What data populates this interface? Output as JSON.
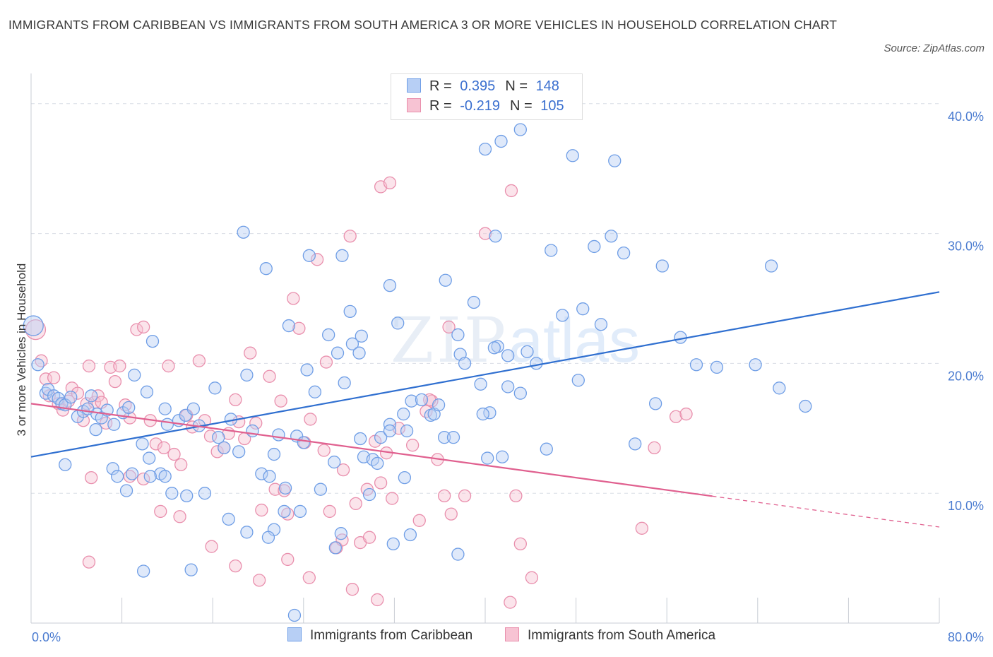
{
  "title": "IMMIGRANTS FROM CARIBBEAN VS IMMIGRANTS FROM SOUTH AMERICA 3 OR MORE VEHICLES IN HOUSEHOLD CORRELATION CHART",
  "source": "Source: ZipAtlas.com",
  "watermark": {
    "zip": "ZIP",
    "atlas": "atlas"
  },
  "legend": {
    "r_label": "R =",
    "n_label": "N =",
    "series": [
      {
        "name": "Immigrants from Caribbean",
        "r": "0.395",
        "n": "148"
      },
      {
        "name": "Immigrants from South America",
        "r": "-0.219",
        "n": "105"
      }
    ]
  },
  "colors": {
    "blue_fill": "#b7cff5",
    "blue_stroke": "#6f9ee6",
    "blue_line": "#2f6fd0",
    "pink_fill": "#f7c3d3",
    "pink_stroke": "#e98fad",
    "pink_line": "#e0608f",
    "grid": "#d9dde5",
    "axis_text": "#4a7bd0"
  },
  "chart_data": {
    "type": "scatter",
    "title": "IMMIGRANTS FROM CARIBBEAN VS IMMIGRANTS FROM SOUTH AMERICA 3 OR MORE VEHICLES IN HOUSEHOLD CORRELATION CHART",
    "xlabel": "",
    "ylabel": "3 or more Vehicles in Household",
    "xlim": [
      0,
      80
    ],
    "ylim": [
      0,
      42
    ],
    "x_ticks": [
      "0.0%",
      "80.0%"
    ],
    "y_ticks": [
      {
        "value": 10,
        "label": "10.0%"
      },
      {
        "value": 20,
        "label": "20.0%"
      },
      {
        "value": 30,
        "label": "30.0%"
      },
      {
        "value": 40,
        "label": "40.0%"
      }
    ],
    "grid": "horizontal dashed",
    "legend_position": "top-center",
    "series": [
      {
        "name": "Immigrants from Caribbean",
        "color": "#6f9ee6",
        "trend": {
          "x": [
            0,
            80
          ],
          "y": [
            12.8,
            25.5
          ],
          "dashed_from": null
        },
        "points": [
          [
            0.2,
            22.9
          ],
          [
            0.6,
            19.9
          ],
          [
            1.3,
            17.7
          ],
          [
            1.5,
            18.0
          ],
          [
            2.0,
            17.5
          ],
          [
            2.4,
            17.3
          ],
          [
            2.7,
            16.9
          ],
          [
            3.0,
            16.8
          ],
          [
            3.5,
            17.4
          ],
          [
            4.1,
            15.9
          ],
          [
            4.6,
            16.3
          ],
          [
            5.0,
            16.5
          ],
          [
            5.3,
            17.5
          ],
          [
            5.8,
            16.1
          ],
          [
            6.2,
            15.8
          ],
          [
            5.7,
            14.9
          ],
          [
            6.7,
            16.4
          ],
          [
            7.3,
            15.3
          ],
          [
            8.1,
            16.2
          ],
          [
            8.6,
            16.6
          ],
          [
            9.1,
            19.1
          ],
          [
            10.2,
            17.8
          ],
          [
            10.7,
            21.7
          ],
          [
            11.4,
            11.5
          ],
          [
            9.8,
            13.8
          ],
          [
            10.4,
            12.7
          ],
          [
            11.8,
            16.5
          ],
          [
            12.0,
            15.3
          ],
          [
            13.0,
            15.6
          ],
          [
            13.6,
            16.0
          ],
          [
            14.3,
            16.5
          ],
          [
            14.8,
            15.2
          ],
          [
            15.3,
            10.0
          ],
          [
            16.2,
            18.1
          ],
          [
            16.5,
            14.3
          ],
          [
            17.0,
            13.5
          ],
          [
            17.6,
            15.7
          ],
          [
            18.3,
            13.2
          ],
          [
            19.0,
            19.1
          ],
          [
            19.5,
            14.8
          ],
          [
            20.3,
            11.5
          ],
          [
            21.0,
            11.3
          ],
          [
            21.4,
            13.0
          ],
          [
            21.8,
            14.5
          ],
          [
            22.4,
            10.4
          ],
          [
            22.7,
            22.9
          ],
          [
            23.4,
            14.4
          ],
          [
            23.7,
            8.6
          ],
          [
            24.0,
            13.9
          ],
          [
            24.3,
            19.5
          ],
          [
            25.0,
            17.8
          ],
          [
            25.5,
            10.3
          ],
          [
            24.5,
            28.3
          ],
          [
            26.2,
            22.2
          ],
          [
            27.0,
            20.8
          ],
          [
            27.6,
            18.5
          ],
          [
            28.1,
            24.0
          ],
          [
            28.3,
            21.5
          ],
          [
            28.9,
            20.8
          ],
          [
            29.1,
            22.1
          ],
          [
            29.3,
            12.8
          ],
          [
            30.1,
            12.6
          ],
          [
            30.8,
            14.3
          ],
          [
            31.6,
            15.3
          ],
          [
            32.3,
            23.1
          ],
          [
            32.8,
            16.1
          ],
          [
            33.1,
            14.8
          ],
          [
            33.5,
            17.1
          ],
          [
            34.4,
            17.2
          ],
          [
            35.2,
            16.0
          ],
          [
            35.5,
            16.1
          ],
          [
            35.9,
            16.8
          ],
          [
            36.4,
            14.3
          ],
          [
            37.2,
            14.3
          ],
          [
            37.6,
            22.2
          ],
          [
            37.8,
            20.7
          ],
          [
            38.2,
            20.0
          ],
          [
            39.6,
            18.4
          ],
          [
            40.4,
            16.2
          ],
          [
            41.1,
            21.3
          ],
          [
            41.5,
            12.8
          ],
          [
            42.0,
            18.2
          ],
          [
            43.1,
            17.7
          ],
          [
            43.7,
            20.9
          ],
          [
            44.5,
            20.0
          ],
          [
            45.4,
            13.4
          ],
          [
            45.8,
            28.7
          ],
          [
            46.8,
            23.7
          ],
          [
            48.2,
            18.7
          ],
          [
            48.6,
            24.2
          ],
          [
            49.6,
            29.0
          ],
          [
            50.2,
            23.0
          ],
          [
            51.1,
            29.8
          ],
          [
            52.2,
            28.5
          ],
          [
            53.2,
            13.8
          ],
          [
            55.0,
            16.9
          ],
          [
            55.6,
            27.5
          ],
          [
            57.2,
            22.0
          ],
          [
            58.6,
            19.9
          ],
          [
            60.4,
            19.7
          ],
          [
            65.2,
            27.5
          ],
          [
            65.9,
            18.1
          ],
          [
            68.2,
            16.7
          ],
          [
            63.8,
            19.9
          ],
          [
            20.7,
            27.3
          ],
          [
            18.7,
            30.1
          ],
          [
            27.4,
            28.3
          ],
          [
            31.6,
            26.0
          ],
          [
            36.5,
            26.4
          ],
          [
            40.0,
            36.5
          ],
          [
            41.4,
            37.1
          ],
          [
            43.1,
            38.0
          ],
          [
            47.7,
            36.0
          ],
          [
            51.4,
            35.6
          ],
          [
            40.9,
            29.8
          ],
          [
            39.0,
            24.7
          ],
          [
            40.8,
            21.2
          ],
          [
            42.0,
            20.6
          ],
          [
            39.8,
            16.1
          ],
          [
            40.2,
            12.7
          ],
          [
            31.6,
            14.8
          ],
          [
            30.5,
            12.3
          ],
          [
            29.0,
            14.2
          ],
          [
            26.7,
            12.4
          ],
          [
            27.3,
            6.9
          ],
          [
            26.8,
            5.8
          ],
          [
            31.9,
            6.1
          ],
          [
            33.4,
            6.8
          ],
          [
            37.6,
            5.3
          ],
          [
            32.9,
            11.2
          ],
          [
            29.8,
            9.9
          ],
          [
            22.3,
            8.6
          ],
          [
            21.4,
            7.2
          ],
          [
            20.9,
            6.6
          ],
          [
            19.0,
            7.0
          ],
          [
            17.4,
            8.0
          ],
          [
            13.7,
            9.8
          ],
          [
            12.4,
            10.0
          ],
          [
            11.8,
            11.3
          ],
          [
            10.5,
            11.3
          ],
          [
            8.9,
            11.5
          ],
          [
            8.4,
            10.2
          ],
          [
            7.2,
            11.9
          ],
          [
            7.6,
            11.3
          ],
          [
            3.0,
            12.2
          ],
          [
            9.9,
            4.0
          ],
          [
            14.1,
            4.1
          ],
          [
            23.2,
            0.6
          ]
        ]
      },
      {
        "name": "Immigrants from South America",
        "color": "#e98fad",
        "trend": {
          "x": [
            0,
            80
          ],
          "y": [
            16.9,
            7.4
          ],
          "dashed_from": 60
        },
        "points": [
          [
            0.4,
            22.6
          ],
          [
            0.9,
            20.2
          ],
          [
            1.3,
            18.8
          ],
          [
            1.6,
            17.5
          ],
          [
            2.0,
            18.9
          ],
          [
            2.4,
            16.9
          ],
          [
            2.8,
            16.4
          ],
          [
            3.3,
            17.1
          ],
          [
            3.6,
            18.1
          ],
          [
            4.1,
            17.7
          ],
          [
            4.6,
            15.6
          ],
          [
            4.9,
            16.9
          ],
          [
            5.1,
            19.8
          ],
          [
            5.6,
            17.0
          ],
          [
            5.9,
            17.5
          ],
          [
            6.2,
            17.0
          ],
          [
            6.6,
            15.4
          ],
          [
            7.0,
            19.7
          ],
          [
            7.4,
            18.6
          ],
          [
            7.8,
            19.8
          ],
          [
            8.3,
            16.8
          ],
          [
            8.7,
            15.8
          ],
          [
            9.3,
            22.6
          ],
          [
            9.9,
            22.8
          ],
          [
            10.5,
            15.6
          ],
          [
            11.0,
            13.8
          ],
          [
            11.7,
            13.5
          ],
          [
            12.1,
            19.8
          ],
          [
            12.6,
            13.0
          ],
          [
            13.2,
            12.2
          ],
          [
            13.7,
            16.0
          ],
          [
            14.2,
            15.1
          ],
          [
            14.8,
            20.2
          ],
          [
            15.3,
            15.6
          ],
          [
            15.8,
            14.4
          ],
          [
            16.4,
            13.2
          ],
          [
            17.0,
            13.5
          ],
          [
            17.4,
            14.6
          ],
          [
            18.0,
            17.2
          ],
          [
            18.3,
            15.5
          ],
          [
            18.8,
            14.2
          ],
          [
            19.3,
            20.8
          ],
          [
            19.8,
            15.4
          ],
          [
            20.3,
            8.7
          ],
          [
            21.0,
            19.0
          ],
          [
            21.5,
            10.3
          ],
          [
            22.0,
            17.1
          ],
          [
            22.6,
            8.4
          ],
          [
            23.1,
            25.0
          ],
          [
            23.6,
            22.7
          ],
          [
            24.1,
            13.9
          ],
          [
            24.6,
            15.7
          ],
          [
            25.2,
            28.0
          ],
          [
            25.8,
            13.3
          ],
          [
            26.3,
            8.6
          ],
          [
            26.9,
            5.8
          ],
          [
            27.5,
            11.8
          ],
          [
            28.1,
            29.8
          ],
          [
            28.6,
            9.2
          ],
          [
            29.0,
            6.2
          ],
          [
            29.6,
            10.3
          ],
          [
            30.3,
            14.0
          ],
          [
            30.8,
            10.8
          ],
          [
            31.3,
            13.1
          ],
          [
            31.8,
            9.6
          ],
          [
            32.4,
            15.0
          ],
          [
            22.3,
            10.2
          ],
          [
            33.6,
            13.7
          ],
          [
            34.2,
            7.9
          ],
          [
            34.8,
            16.3
          ],
          [
            35.3,
            17.1
          ],
          [
            35.8,
            12.6
          ],
          [
            26.0,
            20.1
          ],
          [
            27.4,
            6.4
          ],
          [
            28.3,
            2.6
          ],
          [
            30.5,
            1.8
          ],
          [
            29.8,
            6.6
          ],
          [
            24.5,
            3.5
          ],
          [
            22.6,
            4.9
          ],
          [
            20.1,
            3.3
          ],
          [
            18.0,
            4.4
          ],
          [
            15.9,
            5.9
          ],
          [
            13.1,
            8.2
          ],
          [
            11.4,
            8.6
          ],
          [
            9.9,
            11.1
          ],
          [
            8.7,
            11.3
          ],
          [
            5.3,
            11.2
          ],
          [
            5.1,
            4.7
          ],
          [
            35.1,
            17.2
          ],
          [
            36.4,
            9.8
          ],
          [
            36.8,
            22.8
          ],
          [
            37.0,
            8.4
          ],
          [
            38.2,
            9.8
          ],
          [
            40.0,
            30.0
          ],
          [
            42.2,
            1.6
          ],
          [
            42.7,
            9.8
          ],
          [
            43.1,
            6.1
          ],
          [
            44.1,
            3.5
          ],
          [
            30.8,
            33.6
          ],
          [
            31.6,
            33.9
          ],
          [
            42.3,
            33.3
          ],
          [
            53.8,
            7.3
          ],
          [
            56.8,
            15.9
          ],
          [
            54.9,
            13.5
          ],
          [
            57.7,
            16.1
          ]
        ]
      }
    ]
  }
}
